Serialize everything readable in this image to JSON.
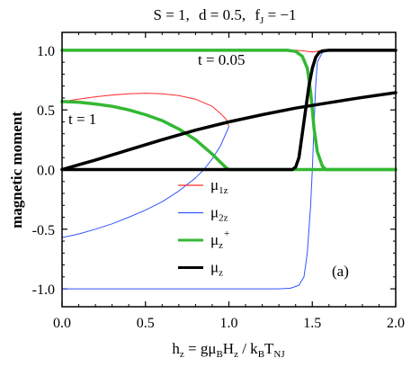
{
  "chart_data": {
    "type": "line",
    "title_parts": {
      "s": "S = 1,",
      "d": "d = 0.5,",
      "f_main": "f",
      "f_sub": "J",
      "f_val": " = −1"
    },
    "ylabel": "magnetic moment",
    "xlabel_parts": {
      "h": "h",
      "z1": "z",
      "eq": " = gμ",
      "b1": "B",
      "H": "H",
      "z2": "z",
      "slash": " / k",
      "b2": "B",
      "T": "T",
      "nj": "NJ"
    },
    "xlim": [
      0.0,
      2.0
    ],
    "ylim": [
      -1.15,
      1.15
    ],
    "x_ticks": [
      "0.0",
      "0.5",
      "1.0",
      "1.5",
      "2.0"
    ],
    "x_tick_values": [
      0.0,
      0.5,
      1.0,
      1.5,
      2.0
    ],
    "y_ticks": [
      "-1.0",
      "-0.5",
      "0.0",
      "0.5",
      "1.0"
    ],
    "y_tick_values": [
      -1.0,
      -0.5,
      0.0,
      0.5,
      1.0
    ],
    "annotations": {
      "t_low": "t = 0.05",
      "t_high": "t = 1",
      "panel": "(a)"
    },
    "legend_placement": "lower-center",
    "legend": [
      {
        "symbol": "μ",
        "sub": "1z",
        "sup": "",
        "color": "#ff2a2a"
      },
      {
        "symbol": "μ",
        "sub": "2z",
        "sup": "",
        "color": "#3355ff"
      },
      {
        "symbol": "μ",
        "sub": "z",
        "sup": "+",
        "color": "#33b833"
      },
      {
        "symbol": "μ",
        "sub": "z",
        "sup": "",
        "color": "#000000"
      }
    ],
    "series": [
      {
        "group": "t=0.05",
        "color": "#ff2a2a",
        "width": 1,
        "x": [
          0.0,
          1.3,
          1.4,
          1.45,
          1.5,
          1.52,
          1.55,
          1.6,
          2.0
        ],
        "y": [
          1.0,
          1.0,
          1.0,
          0.995,
          0.985,
          0.99,
          0.997,
          1.0,
          1.0
        ]
      },
      {
        "group": "t=1",
        "color": "#ff2a2a",
        "width": 1,
        "x": [
          0.0,
          0.1,
          0.2,
          0.3,
          0.4,
          0.5,
          0.6,
          0.7,
          0.8,
          0.9,
          0.95,
          0.985,
          1.0
        ],
        "y": [
          0.57,
          0.59,
          0.61,
          0.625,
          0.635,
          0.64,
          0.635,
          0.62,
          0.59,
          0.53,
          0.47,
          0.42,
          0.36
        ]
      },
      {
        "group": "t=0.05",
        "color": "#3355ff",
        "width": 1,
        "x": [
          0.0,
          1.3,
          1.37,
          1.42,
          1.45,
          1.47,
          1.49,
          1.5,
          1.51,
          1.52,
          1.53,
          1.56,
          1.6,
          2.0
        ],
        "y": [
          -1.0,
          -1.0,
          -0.995,
          -0.97,
          -0.9,
          -0.7,
          -0.3,
          0.0,
          0.35,
          0.7,
          0.9,
          0.98,
          1.0,
          1.0
        ]
      },
      {
        "group": "t=1",
        "color": "#3355ff",
        "width": 1,
        "x": [
          0.0,
          0.1,
          0.2,
          0.3,
          0.4,
          0.5,
          0.6,
          0.7,
          0.8,
          0.85,
          0.9,
          0.95,
          1.0
        ],
        "y": [
          -0.57,
          -0.54,
          -0.5,
          -0.455,
          -0.4,
          -0.34,
          -0.27,
          -0.18,
          -0.07,
          0.0,
          0.09,
          0.2,
          0.36
        ]
      },
      {
        "group": "t=0.05",
        "color": "#33b833",
        "width": 3.5,
        "x": [
          0.0,
          1.35,
          1.4,
          1.44,
          1.47,
          1.49,
          1.5,
          1.51,
          1.53,
          1.56,
          1.58,
          1.6,
          2.0
        ],
        "y": [
          1.0,
          1.0,
          0.99,
          0.95,
          0.85,
          0.65,
          0.5,
          0.35,
          0.15,
          0.03,
          0.0,
          0.0,
          0.0
        ]
      },
      {
        "group": "t=1",
        "color": "#33b833",
        "width": 3.5,
        "x": [
          0.0,
          0.1,
          0.2,
          0.3,
          0.4,
          0.5,
          0.6,
          0.7,
          0.8,
          0.85,
          0.9,
          0.95,
          0.98,
          1.0,
          2.0
        ],
        "y": [
          0.57,
          0.565,
          0.55,
          0.53,
          0.5,
          0.46,
          0.41,
          0.34,
          0.25,
          0.19,
          0.13,
          0.06,
          0.02,
          0.0,
          0.0
        ]
      },
      {
        "group": "t=0.05",
        "color": "#000000",
        "width": 3.5,
        "x": [
          0.0,
          1.35,
          1.38,
          1.4,
          1.42,
          1.44,
          1.46,
          1.48,
          1.5,
          1.52,
          1.54,
          1.56,
          1.6,
          2.0
        ],
        "y": [
          0.0,
          0.0,
          0.0,
          0.02,
          0.1,
          0.3,
          0.5,
          0.7,
          0.85,
          0.94,
          0.98,
          0.995,
          1.0,
          1.0
        ]
      },
      {
        "group": "t=1",
        "color": "#000000",
        "width": 3.5,
        "x": [
          0.0,
          0.1,
          0.2,
          0.4,
          0.6,
          0.8,
          1.0,
          1.2,
          1.4,
          1.6,
          1.8,
          2.0
        ],
        "y": [
          0.0,
          0.04,
          0.08,
          0.165,
          0.25,
          0.33,
          0.4,
          0.46,
          0.515,
          0.56,
          0.605,
          0.645
        ]
      }
    ]
  }
}
